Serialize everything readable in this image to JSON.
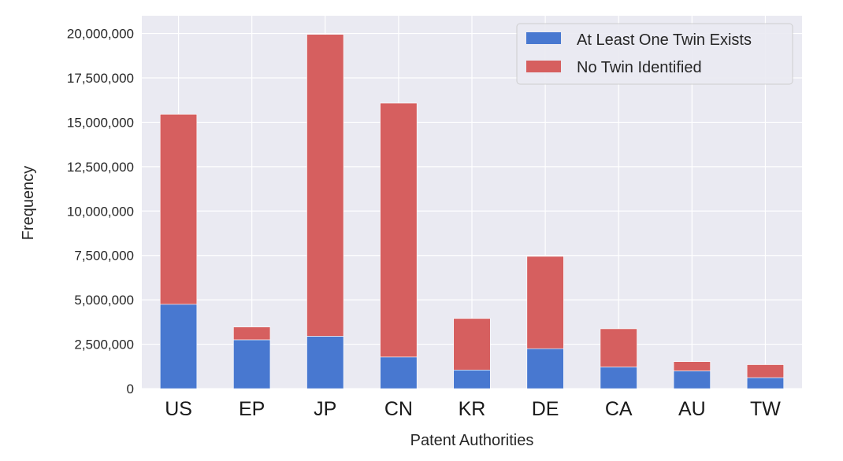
{
  "chart_data": {
    "type": "bar",
    "stacked": true,
    "title": "",
    "xlabel": "Patent Authorities",
    "ylabel": "Frequency",
    "ylim": [
      0,
      21000000
    ],
    "yticks": [
      0,
      2500000,
      5000000,
      7500000,
      10000000,
      12500000,
      15000000,
      17500000,
      20000000
    ],
    "ytick_labels": [
      "0",
      "2,500,000",
      "5,000,000",
      "7,500,000",
      "10,000,000",
      "12,500,000",
      "15,000,000",
      "17,500,000",
      "20,000,000"
    ],
    "categories": [
      "US",
      "EP",
      "JP",
      "CN",
      "KR",
      "DE",
      "CA",
      "AU",
      "TW"
    ],
    "series": [
      {
        "name": "At Least One Twin Exists",
        "color": "#4878d0",
        "values": [
          4750000,
          2750000,
          2950000,
          1780000,
          1050000,
          2250000,
          1220000,
          1000000,
          620000
        ]
      },
      {
        "name": "No Twin Identified",
        "color": "#d65f5f",
        "values": [
          10700000,
          720000,
          17000000,
          14300000,
          2900000,
          5200000,
          2150000,
          520000,
          730000
        ]
      }
    ],
    "grid": true,
    "legend_position": "top-right",
    "background": "#eaeaf2"
  }
}
